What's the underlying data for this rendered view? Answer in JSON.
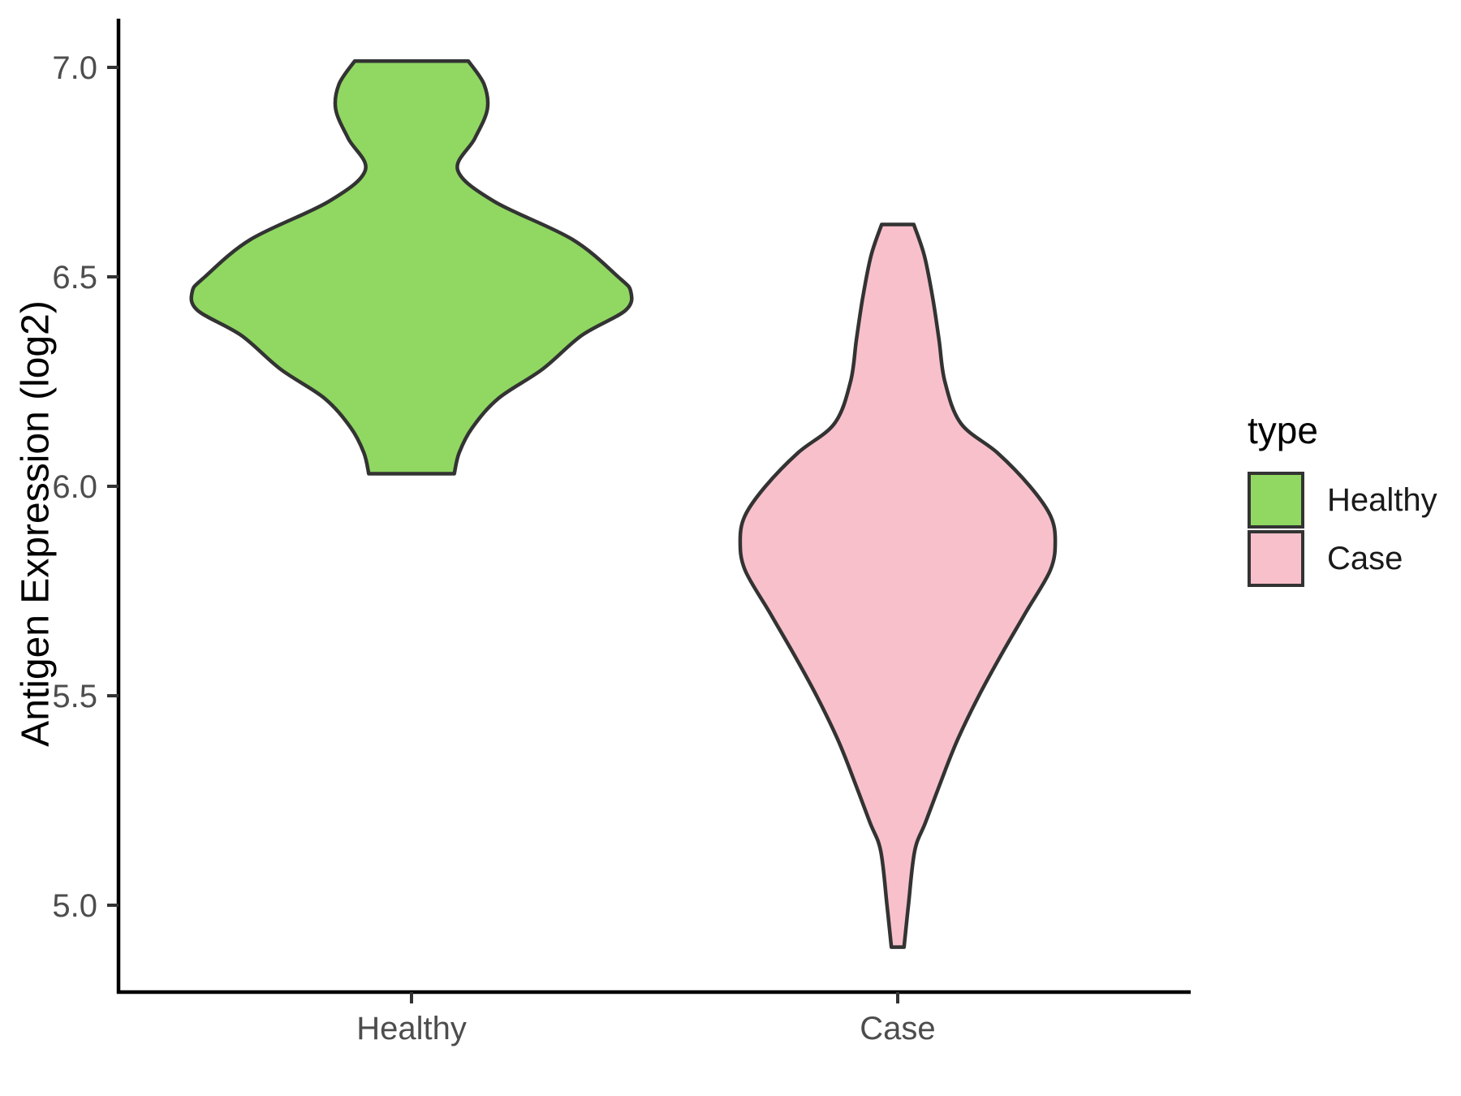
{
  "chart_data": {
    "type": "violin",
    "title": "",
    "xlabel": "",
    "ylabel": "Antigen Expression (log2)",
    "x_categories": [
      "Healthy",
      "Case"
    ],
    "y_ticks": [
      {
        "value": 7.0,
        "label": "7.0"
      },
      {
        "value": 6.5,
        "label": "6.5"
      },
      {
        "value": 6.0,
        "label": "6.0"
      },
      {
        "value": 5.5,
        "label": "5.5"
      },
      {
        "value": 5.0,
        "label": "5.0"
      }
    ],
    "ylim": [
      4.79,
      7.12
    ],
    "grid": "off",
    "outline_color": "#333333",
    "axis_color": "#000000",
    "tick_label_color": "#4d4d4d",
    "series": [
      {
        "name": "Healthy",
        "color": "#90D862",
        "value_range": [
          6.03,
          7.01
        ],
        "peak_density_at": 6.47,
        "profile": [
          [
            7.015,
            0.117
          ],
          [
            6.96,
            0.149
          ],
          [
            6.9,
            0.156
          ],
          [
            6.83,
            0.13
          ],
          [
            6.755,
            0.095
          ],
          [
            6.68,
            0.17
          ],
          [
            6.59,
            0.33
          ],
          [
            6.5,
            0.425
          ],
          [
            6.465,
            0.451
          ],
          [
            6.42,
            0.44
          ],
          [
            6.36,
            0.35
          ],
          [
            6.28,
            0.27
          ],
          [
            6.21,
            0.179
          ],
          [
            6.14,
            0.125
          ],
          [
            6.08,
            0.098
          ],
          [
            6.03,
            0.088
          ]
        ]
      },
      {
        "name": "Case",
        "color": "#F8C0CB",
        "value_range": [
          4.9,
          6.63
        ],
        "peak_density_at": 5.87,
        "profile": [
          [
            6.625,
            0.033
          ],
          [
            6.55,
            0.055
          ],
          [
            6.45,
            0.072
          ],
          [
            6.35,
            0.085
          ],
          [
            6.25,
            0.097
          ],
          [
            6.15,
            0.13
          ],
          [
            6.08,
            0.205
          ],
          [
            6.0,
            0.272
          ],
          [
            5.93,
            0.314
          ],
          [
            5.87,
            0.324
          ],
          [
            5.8,
            0.314
          ],
          [
            5.7,
            0.264
          ],
          [
            5.6,
            0.214
          ],
          [
            5.5,
            0.167
          ],
          [
            5.4,
            0.125
          ],
          [
            5.32,
            0.097
          ],
          [
            5.2,
            0.058
          ],
          [
            5.13,
            0.035
          ],
          [
            5.0,
            0.022
          ],
          [
            4.9,
            0.013
          ]
        ]
      }
    ],
    "legend": {
      "title": "type",
      "position": "right",
      "entries": [
        {
          "label": "Healthy",
          "color": "#90D862"
        },
        {
          "label": "Case",
          "color": "#F8C0CB"
        }
      ]
    }
  }
}
